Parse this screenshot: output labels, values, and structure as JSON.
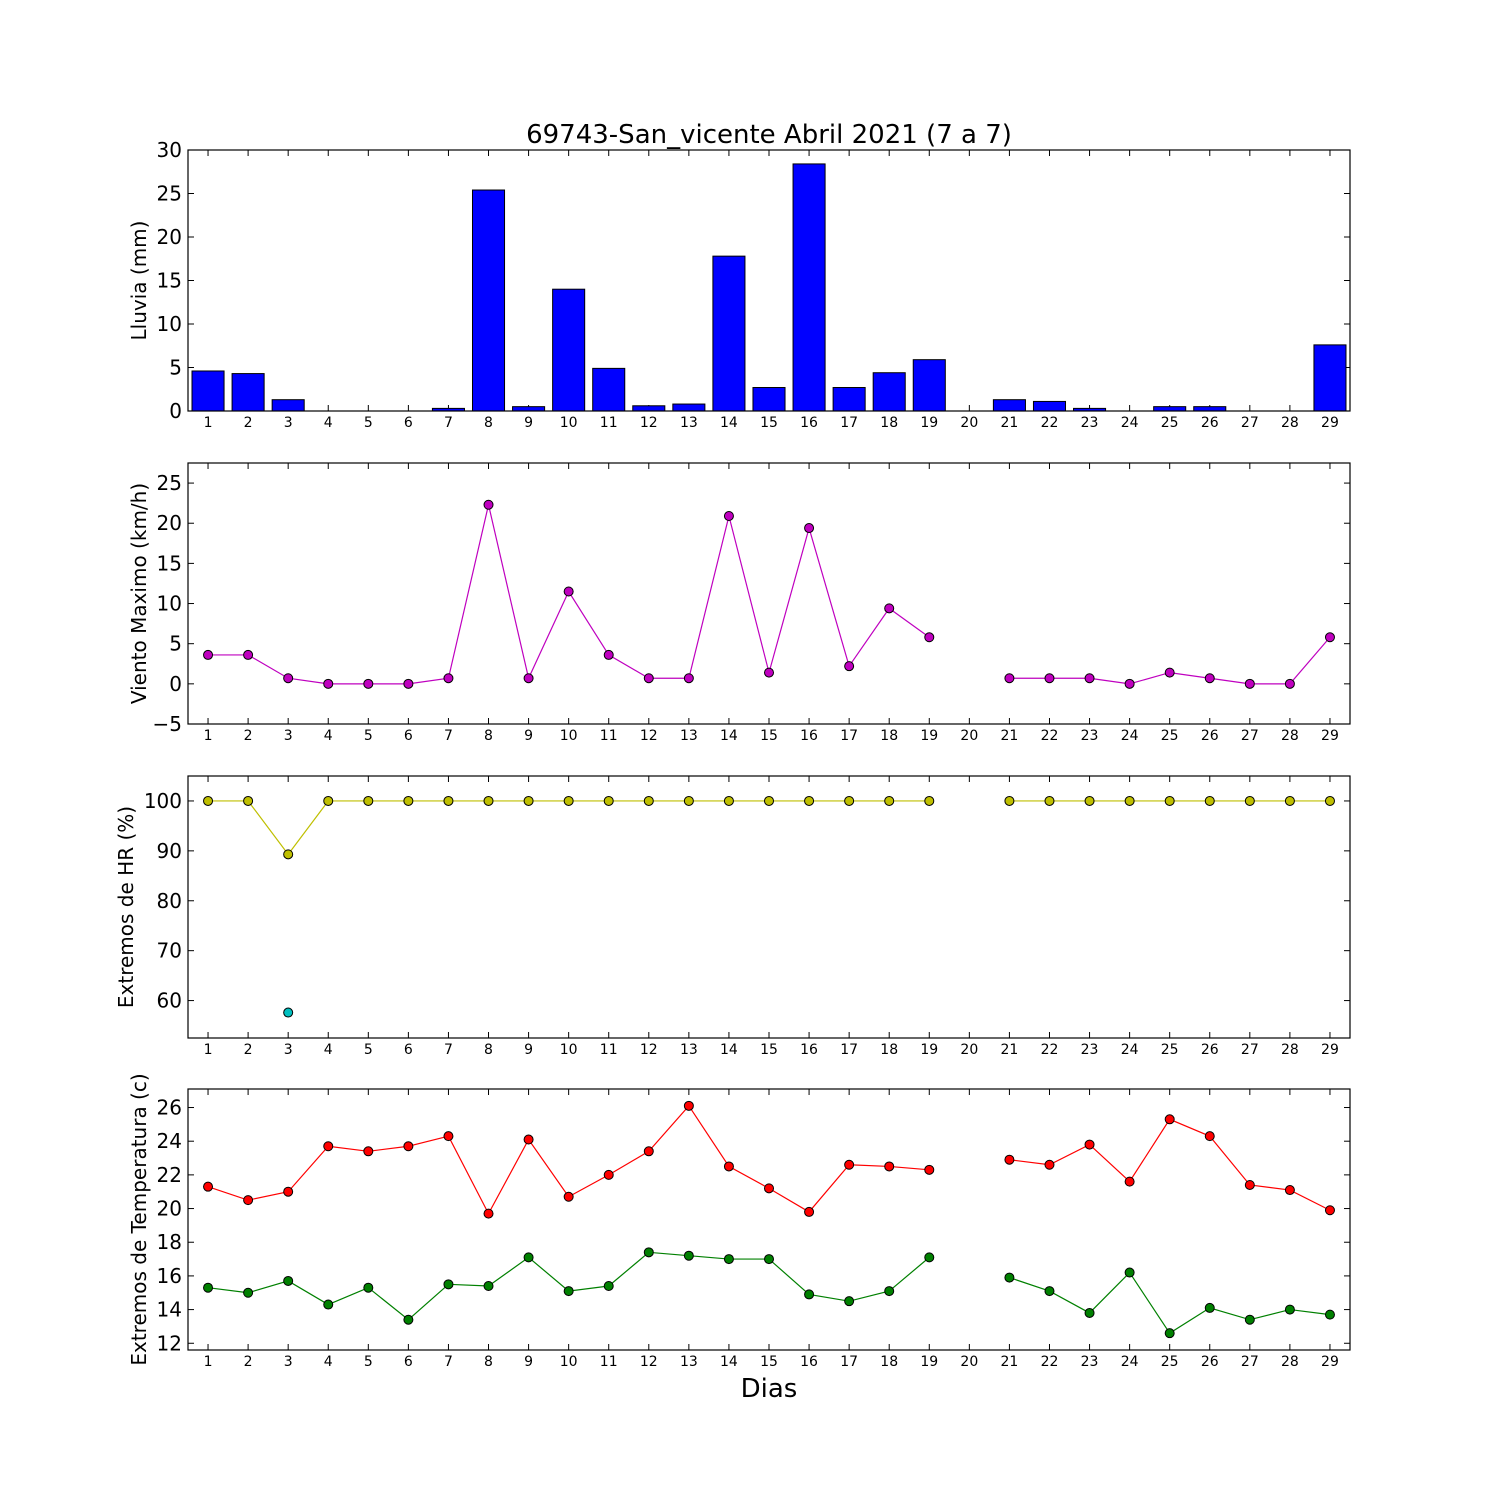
{
  "chart_data": [
    {
      "type": "bar",
      "title": "69743-San_vicente Abril 2021  (7 a 7)",
      "xlabel": "",
      "ylabel": "Lluvia (mm)",
      "ylim": [
        0,
        30
      ],
      "yticks": [
        0,
        5,
        10,
        15,
        20,
        25,
        30
      ],
      "categories": [
        "1",
        "2",
        "3",
        "4",
        "5",
        "6",
        "7",
        "8",
        "9",
        "10",
        "11",
        "12",
        "13",
        "14",
        "15",
        "16",
        "17",
        "18",
        "19",
        "20",
        "21",
        "22",
        "23",
        "24",
        "25",
        "26",
        "27",
        "28",
        "29"
      ],
      "color": "#0000ff",
      "values": [
        4.6,
        4.3,
        1.3,
        0,
        0,
        0,
        0.3,
        25.4,
        0.5,
        14.0,
        4.9,
        0.6,
        0.8,
        17.8,
        2.7,
        28.4,
        2.7,
        4.4,
        5.9,
        null,
        1.3,
        1.1,
        0.3,
        0,
        0.5,
        0.5,
        0,
        0,
        7.6
      ]
    },
    {
      "type": "line",
      "title": "",
      "xlabel": "",
      "ylabel": "Viento Maximo (km/h)",
      "ylim": [
        -5,
        27.5
      ],
      "yticks": [
        -5,
        0,
        5,
        10,
        15,
        20,
        25
      ],
      "x": [
        1,
        2,
        3,
        4,
        5,
        6,
        7,
        8,
        9,
        10,
        11,
        12,
        13,
        14,
        15,
        16,
        17,
        18,
        19,
        20,
        21,
        22,
        23,
        24,
        25,
        26,
        27,
        28,
        29
      ],
      "series": [
        {
          "color": "#bf00bf",
          "values": [
            3.6,
            3.6,
            0.7,
            0,
            0,
            0,
            0.7,
            22.3,
            0.7,
            11.5,
            3.6,
            0.7,
            0.7,
            20.9,
            1.4,
            19.4,
            2.2,
            9.4,
            5.8,
            null,
            0.7,
            0.7,
            0.7,
            0,
            1.4,
            0.7,
            0,
            0,
            5.8
          ]
        }
      ]
    },
    {
      "type": "line",
      "title": "",
      "xlabel": "",
      "ylabel": "Extremos de HR (%)",
      "ylim": [
        52.5,
        105
      ],
      "yticks": [
        60,
        70,
        80,
        90,
        100
      ],
      "x": [
        1,
        2,
        3,
        4,
        5,
        6,
        7,
        8,
        9,
        10,
        11,
        12,
        13,
        14,
        15,
        16,
        17,
        18,
        19,
        20,
        21,
        22,
        23,
        24,
        25,
        26,
        27,
        28,
        29
      ],
      "series": [
        {
          "color": "#bfbf00",
          "values": [
            100,
            100,
            89.3,
            100,
            100,
            100,
            100,
            100,
            100,
            100,
            100,
            100,
            100,
            100,
            100,
            100,
            100,
            100,
            100,
            null,
            100,
            100,
            100,
            100,
            100,
            100,
            100,
            100,
            100
          ]
        },
        {
          "color": "#00bfbf",
          "values": [
            null,
            null,
            57.6,
            null,
            null,
            null,
            null,
            null,
            null,
            null,
            null,
            null,
            null,
            null,
            null,
            null,
            null,
            null,
            null,
            null,
            null,
            null,
            null,
            null,
            null,
            null,
            null,
            null,
            null
          ]
        }
      ]
    },
    {
      "type": "line",
      "title": "",
      "xlabel": "Dias",
      "ylabel": "Extremos de Temperatura (c)",
      "ylim": [
        11.6,
        27.1
      ],
      "yticks": [
        12,
        14,
        16,
        18,
        20,
        22,
        24,
        26
      ],
      "x": [
        1,
        2,
        3,
        4,
        5,
        6,
        7,
        8,
        9,
        10,
        11,
        12,
        13,
        14,
        15,
        16,
        17,
        18,
        19,
        20,
        21,
        22,
        23,
        24,
        25,
        26,
        27,
        28,
        29
      ],
      "series": [
        {
          "color": "#ff0000",
          "values": [
            21.3,
            20.5,
            21.0,
            23.7,
            23.4,
            23.7,
            24.3,
            19.7,
            24.1,
            20.7,
            22.0,
            23.4,
            26.1,
            22.5,
            21.2,
            19.8,
            22.6,
            22.5,
            22.3,
            null,
            22.9,
            22.6,
            23.8,
            21.6,
            25.3,
            24.3,
            21.4,
            21.1,
            19.9
          ]
        },
        {
          "color": "#008000",
          "values": [
            15.3,
            15.0,
            15.7,
            14.3,
            15.3,
            13.4,
            15.5,
            15.4,
            17.1,
            15.1,
            15.4,
            17.4,
            17.2,
            17.0,
            17.0,
            14.9,
            14.5,
            15.1,
            17.1,
            null,
            15.9,
            15.1,
            13.8,
            16.2,
            12.6,
            14.1,
            13.4,
            14.0,
            13.7
          ]
        }
      ]
    }
  ]
}
